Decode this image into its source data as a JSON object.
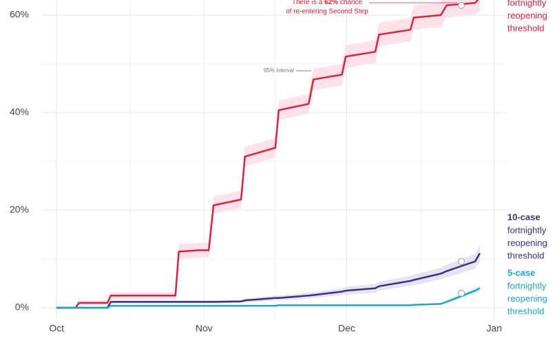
{
  "chart_data": {
    "type": "line",
    "x": [
      0,
      4,
      4.7,
      10.7,
      11.4,
      25,
      25.7,
      30,
      32,
      33,
      38.8,
      39.6,
      46,
      46.7,
      53,
      54,
      60,
      60.8,
      67,
      67.8,
      74.4,
      75.1,
      80.8,
      82,
      88,
      89
    ],
    "xlim": [
      -3.2,
      94.5
    ],
    "xticks": [
      {
        "value": 0,
        "label": "Oct"
      },
      {
        "value": 31,
        "label": "Nov"
      },
      {
        "value": 61,
        "label": "Dec"
      },
      {
        "value": 92,
        "label": "Jan"
      }
    ],
    "xminor": [
      15.5,
      46,
      76.5
    ],
    "ylim": [
      -2.4,
      63.1
    ],
    "yticks": [
      {
        "value": 0,
        "label": "0%"
      },
      {
        "value": 20,
        "label": "20%"
      },
      {
        "value": 40,
        "label": "40%"
      },
      {
        "value": 60,
        "label": "60%"
      }
    ],
    "yminor": [
      10,
      30,
      50
    ],
    "grid": true,
    "series": [
      {
        "color": "#e0203a",
        "band_color": "#fde3e9",
        "label": [
          "fortnightly",
          "reopening",
          "threshold"
        ],
        "values": [
          0,
          0,
          1,
          1,
          2.5,
          2.5,
          11.5,
          11.8,
          11.8,
          21,
          22.2,
          31,
          32.8,
          40.5,
          41.8,
          46.8,
          47.8,
          51.5,
          52.5,
          56,
          57,
          59.5,
          60,
          62,
          62.5,
          63.6
        ],
        "lower": [
          0,
          0,
          0.5,
          0.5,
          1.8,
          1.8,
          10,
          10.3,
          10.3,
          19.3,
          20.4,
          29,
          30.8,
          38.5,
          39.8,
          44.6,
          45.6,
          49.2,
          50.2,
          53.6,
          54.6,
          57,
          57.5,
          59.5,
          60,
          61
        ],
        "upper": [
          0,
          0,
          1.5,
          1.5,
          3.2,
          3.2,
          13,
          13.3,
          13.3,
          22.7,
          24,
          33,
          34.8,
          42.5,
          43.8,
          49,
          50,
          53.8,
          54.8,
          58.4,
          59.4,
          62,
          62.5,
          64.5,
          65,
          66.2
        ],
        "marker_x": 85.1,
        "marker_value": 62
      },
      {
        "name": "10-case",
        "color": "#3b2f85",
        "band_color": "#e6e3f0",
        "label": [
          "fortnightly",
          "reopening",
          "threshold"
        ],
        "values": [
          0,
          0,
          0,
          0,
          1.2,
          1.2,
          1.2,
          1.2,
          1.2,
          1.2,
          1.3,
          1.5,
          2,
          2,
          2.5,
          2.6,
          3.3,
          3.5,
          4,
          4.4,
          5.5,
          5.7,
          7,
          7.5,
          9.5,
          11.2
        ],
        "lower": [
          0,
          0,
          0,
          0,
          0.9,
          0.9,
          0.9,
          0.9,
          0.9,
          0.9,
          1,
          1.1,
          1.5,
          1.5,
          1.9,
          2,
          2.6,
          2.7,
          3.1,
          3.5,
          4.5,
          4.6,
          5.8,
          6.2,
          8,
          9.5
        ],
        "upper": [
          0,
          0,
          0,
          0,
          1.5,
          1.5,
          1.5,
          1.5,
          1.5,
          1.5,
          1.6,
          1.9,
          2.5,
          2.5,
          3.1,
          3.2,
          4,
          4.3,
          4.9,
          5.3,
          6.5,
          6.8,
          8.2,
          8.8,
          11,
          12.9
        ],
        "marker_x": 85.1,
        "marker_value": 9.5
      },
      {
        "name": "5-case",
        "color": "#1fa8b8",
        "band_color": "#d4f0f3",
        "label": [
          "fortnightly",
          "reopening",
          "threshold"
        ],
        "values": [
          0,
          0,
          0,
          0,
          0.4,
          0.4,
          0.4,
          0.4,
          0.4,
          0.4,
          0.4,
          0.4,
          0.4,
          0.5,
          0.5,
          0.5,
          0.5,
          0.5,
          0.5,
          0.5,
          0.5,
          0.6,
          0.8,
          1.2,
          3.5,
          4
        ],
        "lower": [
          0,
          0,
          0,
          0,
          0.3,
          0.3,
          0.3,
          0.3,
          0.3,
          0.3,
          0.3,
          0.3,
          0.3,
          0.4,
          0.4,
          0.4,
          0.4,
          0.4,
          0.4,
          0.4,
          0.4,
          0.5,
          0.6,
          0.9,
          2.9,
          3.3
        ],
        "upper": [
          0,
          0,
          0,
          0,
          0.5,
          0.5,
          0.5,
          0.5,
          0.5,
          0.5,
          0.5,
          0.5,
          0.5,
          0.6,
          0.6,
          0.6,
          0.6,
          0.6,
          0.6,
          0.6,
          0.6,
          0.7,
          1,
          1.5,
          4.1,
          4.7
        ],
        "marker_x": 85.1,
        "marker_value": 3
      }
    ],
    "annotation": {
      "prefix": "There is a ",
      "emphasis": "62%",
      "suffix": " chance",
      "line2": "of re-entering Second Step"
    },
    "interval_label": "95% interval"
  }
}
